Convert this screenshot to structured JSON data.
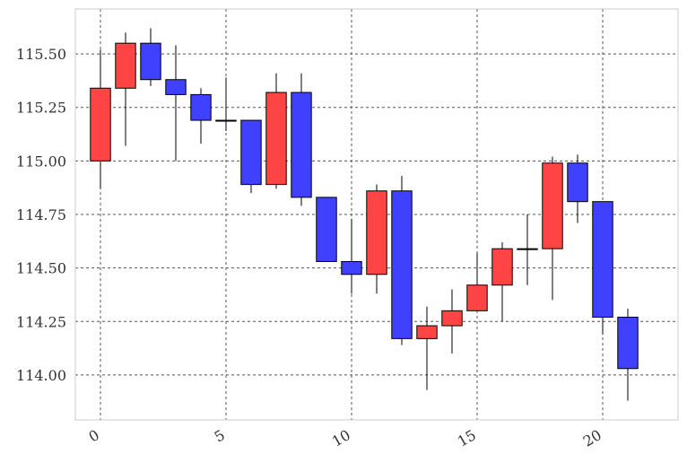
{
  "chart_data": {
    "type": "candlestick",
    "title": "",
    "xlabel": "",
    "ylabel": "",
    "xlim": [
      -1,
      23
    ],
    "ylim": [
      113.79,
      115.71
    ],
    "grid": true,
    "x_ticks": [
      0,
      5,
      10,
      15,
      20
    ],
    "y_ticks": [
      114.0,
      114.25,
      114.5,
      114.75,
      115.0,
      115.25,
      115.5
    ],
    "x_tick_labels": [
      "0",
      "5",
      "10",
      "15",
      "20"
    ],
    "y_tick_labels": [
      "114.00",
      "114.25",
      "114.50",
      "114.75",
      "115.00",
      "115.25",
      "115.50"
    ],
    "colors": {
      "up": "#ff4444",
      "down": "#4040ff",
      "frame": "#cccccc",
      "grid": "#555555"
    },
    "candles": [
      {
        "x": 0,
        "open": 115.0,
        "high": 115.52,
        "low": 114.87,
        "close": 115.34
      },
      {
        "x": 1,
        "open": 115.34,
        "high": 115.6,
        "low": 115.07,
        "close": 115.55
      },
      {
        "x": 2,
        "open": 115.55,
        "high": 115.62,
        "low": 115.35,
        "close": 115.38
      },
      {
        "x": 3,
        "open": 115.38,
        "high": 115.54,
        "low": 115.0,
        "close": 115.31
      },
      {
        "x": 4,
        "open": 115.31,
        "high": 115.34,
        "low": 115.08,
        "close": 115.19
      },
      {
        "x": 5,
        "open": 115.19,
        "high": 115.39,
        "low": 115.14,
        "close": 115.19
      },
      {
        "x": 6,
        "open": 115.19,
        "high": 115.19,
        "low": 114.85,
        "close": 114.89
      },
      {
        "x": 7,
        "open": 114.89,
        "high": 115.41,
        "low": 114.87,
        "close": 115.32
      },
      {
        "x": 8,
        "open": 115.32,
        "high": 115.41,
        "low": 114.79,
        "close": 114.83
      },
      {
        "x": 9,
        "open": 114.83,
        "high": 114.83,
        "low": 114.53,
        "close": 114.53
      },
      {
        "x": 10,
        "open": 114.53,
        "high": 114.73,
        "low": 114.38,
        "close": 114.47
      },
      {
        "x": 11,
        "open": 114.47,
        "high": 114.89,
        "low": 114.38,
        "close": 114.86
      },
      {
        "x": 12,
        "open": 114.86,
        "high": 114.93,
        "low": 114.14,
        "close": 114.17
      },
      {
        "x": 13,
        "open": 114.17,
        "high": 114.32,
        "low": 113.93,
        "close": 114.23
      },
      {
        "x": 14,
        "open": 114.23,
        "high": 114.4,
        "low": 114.1,
        "close": 114.3
      },
      {
        "x": 15,
        "open": 114.3,
        "high": 114.57,
        "low": 114.3,
        "close": 114.42
      },
      {
        "x": 16,
        "open": 114.42,
        "high": 114.62,
        "low": 114.25,
        "close": 114.59
      },
      {
        "x": 17,
        "open": 114.59,
        "high": 114.75,
        "low": 114.42,
        "close": 114.59
      },
      {
        "x": 18,
        "open": 114.59,
        "high": 115.02,
        "low": 114.35,
        "close": 114.99
      },
      {
        "x": 19,
        "open": 114.99,
        "high": 115.03,
        "low": 114.71,
        "close": 114.81
      },
      {
        "x": 20,
        "open": 114.81,
        "high": 114.81,
        "low": 114.19,
        "close": 114.27
      },
      {
        "x": 21,
        "open": 114.27,
        "high": 114.31,
        "low": 113.88,
        "close": 114.03
      }
    ]
  }
}
